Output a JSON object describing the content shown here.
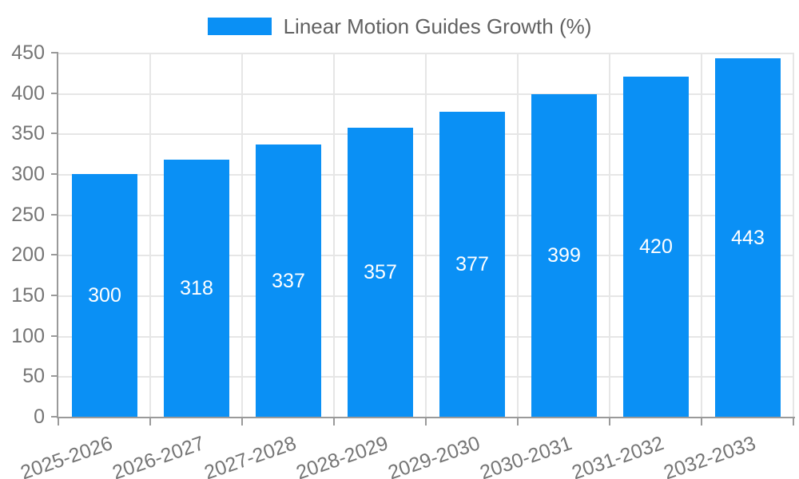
{
  "legend": {
    "label": "Linear Motion Guides Growth (%)"
  },
  "colors": {
    "bar": "#0A90F5",
    "grid": "#E6E6E6",
    "axis": "#9A9A9A",
    "tick_label": "#757575",
    "legend_label": "#616161",
    "value_label": "#FFFFFF",
    "background": "#FFFFFF"
  },
  "chart_data": {
    "type": "bar",
    "title": "",
    "legend_entries": [
      "Linear Motion Guides Growth (%)"
    ],
    "legend_position": "top-center",
    "categories": [
      "2025-2026",
      "2026-2027",
      "2027-2028",
      "2028-2029",
      "2029-2030",
      "2030-2031",
      "2031-2032",
      "2032-2033"
    ],
    "values": [
      300,
      318,
      337,
      357,
      377,
      399,
      420,
      443
    ],
    "xlabel": "",
    "ylabel": "",
    "ylim": [
      0,
      450
    ],
    "yticks": [
      0,
      50,
      100,
      150,
      200,
      250,
      300,
      350,
      400,
      450
    ],
    "grid": true,
    "value_labels_position": "inside-center",
    "x_tick_rotation_deg": -19
  }
}
